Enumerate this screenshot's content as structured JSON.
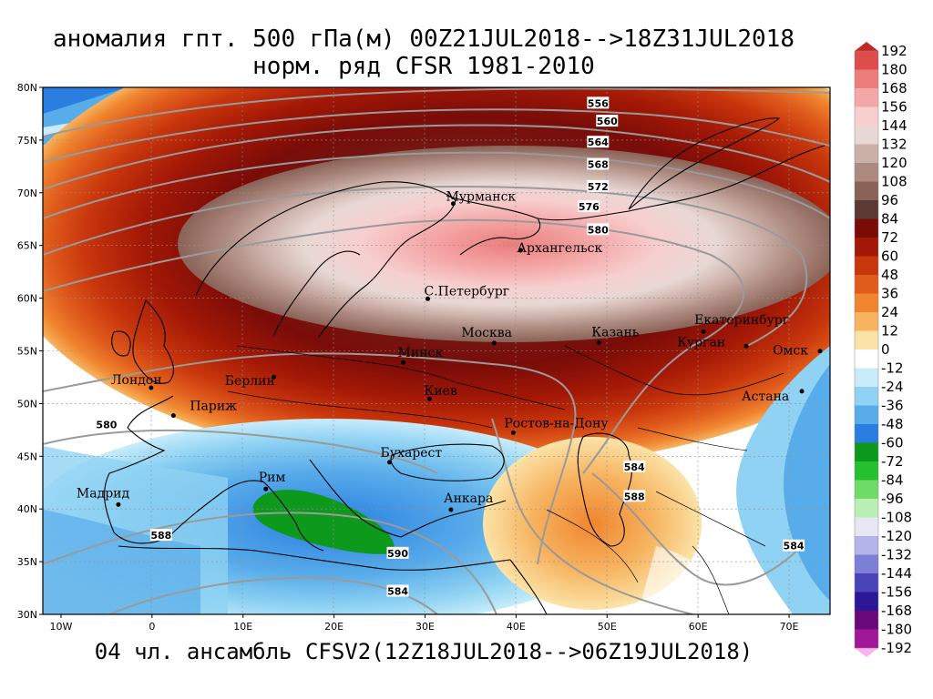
{
  "title": {
    "line1": "аномалия гпт. 500 гПа(м) 00Z21JUL2018-->18Z31JUL2018",
    "line2": "норм. ряд CFSR 1981-2010"
  },
  "footer": "04 чл. ансамбль CFSV2(12Z18JUL2018-->06Z19JUL2018)",
  "axes": {
    "lat_labels": [
      "80N",
      "75N",
      "70N",
      "65N",
      "60N",
      "55N",
      "50N",
      "45N",
      "40N",
      "35N",
      "30N"
    ],
    "lon_labels": [
      "10W",
      "0",
      "10E",
      "20E",
      "30E",
      "40E",
      "50E",
      "60E",
      "70E"
    ]
  },
  "cities": [
    {
      "name": "Мурманск",
      "lon": 33.1,
      "lat": 68.97
    },
    {
      "name": "Архангельск",
      "lon": 40.5,
      "lat": 64.54
    },
    {
      "name": "С.Петербург",
      "lon": 30.3,
      "lat": 59.94
    },
    {
      "name": "Москва",
      "lon": 37.6,
      "lat": 55.75
    },
    {
      "name": "Казань",
      "lon": 49.1,
      "lat": 55.79
    },
    {
      "name": "Екатеринбург",
      "lon": 60.6,
      "lat": 56.84
    },
    {
      "name": "Курган",
      "lon": 65.3,
      "lat": 55.44
    },
    {
      "name": "Омск",
      "lon": 73.4,
      "lat": 54.98
    },
    {
      "name": "Астана",
      "lon": 71.4,
      "lat": 51.17
    },
    {
      "name": "Минск",
      "lon": 27.6,
      "lat": 53.9
    },
    {
      "name": "Берлин",
      "lon": 13.4,
      "lat": 52.52
    },
    {
      "name": "Лондон",
      "lon": -0.1,
      "lat": 51.5
    },
    {
      "name": "Париж",
      "lon": 2.35,
      "lat": 48.86
    },
    {
      "name": "Киев",
      "lon": 30.5,
      "lat": 50.45
    },
    {
      "name": "Ростов-на-Дону",
      "lon": 39.7,
      "lat": 47.23
    },
    {
      "name": "Бухарест",
      "lon": 26.1,
      "lat": 44.43
    },
    {
      "name": "Рим",
      "lon": 12.5,
      "lat": 41.9
    },
    {
      "name": "Мадрид",
      "lon": -3.7,
      "lat": 40.42
    },
    {
      "name": "Анкара",
      "lon": 32.85,
      "lat": 39.93
    }
  ],
  "contour_labels": [
    {
      "text": "556",
      "lon": 49,
      "lat": 78.5
    },
    {
      "text": "560",
      "lon": 50,
      "lat": 76.8
    },
    {
      "text": "564",
      "lon": 49,
      "lat": 74.8
    },
    {
      "text": "568",
      "lon": 49,
      "lat": 72.7
    },
    {
      "text": "572",
      "lon": 49,
      "lat": 70.6
    },
    {
      "text": "576",
      "lon": 48,
      "lat": 68.7
    },
    {
      "text": "580",
      "lon": 49,
      "lat": 66.5
    },
    {
      "text": "580",
      "lon": -5,
      "lat": 48.0
    },
    {
      "text": "584",
      "lon": 53,
      "lat": 44.0
    },
    {
      "text": "588",
      "lon": 53,
      "lat": 41.2
    },
    {
      "text": "588",
      "lon": 1,
      "lat": 37.5
    },
    {
      "text": "590",
      "lon": 27,
      "lat": 35.8
    },
    {
      "text": "584",
      "lon": 27,
      "lat": 32.2
    },
    {
      "text": "584",
      "lon": 70.5,
      "lat": 36.5
    }
  ],
  "colorbar": {
    "labels": [
      "192",
      "180",
      "168",
      "156",
      "144",
      "132",
      "120",
      "108",
      "96",
      "84",
      "72",
      "60",
      "48",
      "36",
      "24",
      "12",
      "0",
      "-12",
      "-24",
      "-36",
      "-48",
      "-60",
      "-72",
      "-84",
      "-96",
      "-108",
      "-120",
      "-132",
      "-144",
      "-156",
      "-168",
      "-180",
      "-192"
    ],
    "colors": [
      "#c42525",
      "#de4c4c",
      "#ec7d7d",
      "#f4a7a7",
      "#f7cfcf",
      "#e8d8d4",
      "#cbb0a8",
      "#ad8a80",
      "#8a6257",
      "#5c3a33",
      "#7a0c08",
      "#a31806",
      "#c8360c",
      "#e05c1c",
      "#f0852f",
      "#f7b35f",
      "#fbe3a8",
      "#ffffff",
      "#c8ecfb",
      "#8fd2f3",
      "#58acea",
      "#2a7ee0",
      "#0d9a1c",
      "#26c131",
      "#6fdc6a",
      "#b9efb2",
      "#e6e6f5",
      "#b4b4ea",
      "#7d7ed6",
      "#4a44b8",
      "#2a1896",
      "#6a0a7a",
      "#a01898",
      "#d628c2",
      "#f078e0",
      "#f8b4f0"
    ]
  },
  "fields": {
    "anomaly_max_m": 168,
    "anomaly_max_location": "Barents/Kara Sea",
    "anomaly_min_m": -60,
    "anomaly_min_location": "Ionian Sea"
  }
}
